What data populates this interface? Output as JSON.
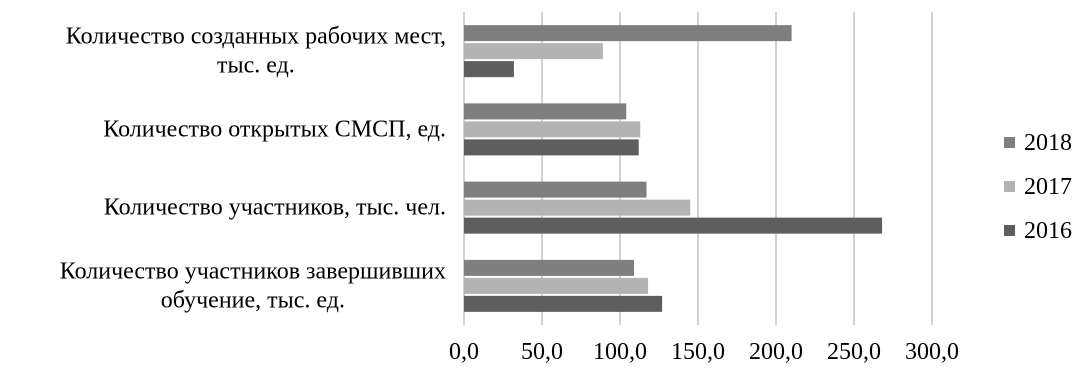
{
  "chart_data": {
    "type": "bar",
    "orientation": "horizontal",
    "categories": [
      [
        "Количество созданных рабочих мест,",
        "тыс. ед."
      ],
      [
        "Количество открытых СМСП, ед."
      ],
      [
        "Количество участников, тыс. чел."
      ],
      [
        "Количество участников завершивших",
        "обучение, тыс. ед."
      ]
    ],
    "series": [
      {
        "name": "2018",
        "color": "#7f7f7f",
        "values": [
          210,
          104,
          117,
          109
        ]
      },
      {
        "name": "2017",
        "color": "#b3b3b3",
        "values": [
          89,
          113,
          145,
          118
        ]
      },
      {
        "name": "2016",
        "color": "#5e5e5e",
        "values": [
          32,
          112,
          268,
          127
        ]
      }
    ],
    "xlim": [
      0,
      300
    ],
    "x_ticks": [
      "0,0",
      "50,0",
      "100,0",
      "150,0",
      "200,0",
      "250,0",
      "300,0"
    ],
    "grid": "vertical",
    "legend": "right",
    "title": "",
    "xlabel": "",
    "ylabel": ""
  }
}
